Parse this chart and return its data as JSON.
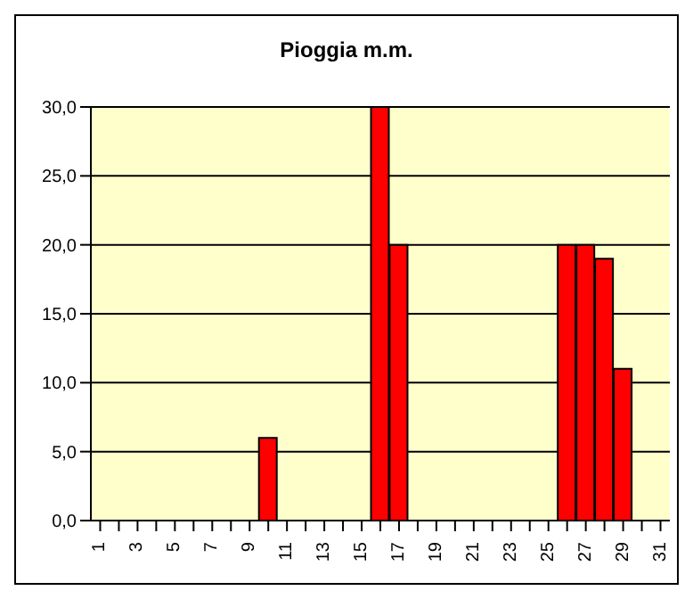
{
  "chart_data": {
    "type": "bar",
    "title": "Pioggia m.m.",
    "categories": [
      "1",
      null,
      "3",
      null,
      "5",
      null,
      "7",
      null,
      "9",
      null,
      "11",
      null,
      "13",
      null,
      "15",
      null,
      "17",
      null,
      "19",
      null,
      "21",
      null,
      "23",
      null,
      "25",
      null,
      "27",
      null,
      "29",
      null,
      "31"
    ],
    "values": [
      0,
      0,
      0,
      0,
      0,
      0,
      0,
      0,
      0,
      6,
      0,
      0,
      0,
      0,
      0,
      30,
      20,
      0,
      0,
      0,
      0,
      0,
      0,
      0,
      0,
      20,
      20,
      19,
      11,
      0,
      0
    ],
    "color": "#ff0000",
    "ylim": [
      0,
      30
    ],
    "yticks": [
      {
        "value": 0,
        "label": "0,0"
      },
      {
        "value": 5,
        "label": "5,0"
      },
      {
        "value": 10,
        "label": "10,0"
      },
      {
        "value": 15,
        "label": "15,0"
      },
      {
        "value": 20,
        "label": "20,0"
      },
      {
        "value": 25,
        "label": "25,0"
      },
      {
        "value": 30,
        "label": "30,0"
      }
    ],
    "grid": "y"
  }
}
